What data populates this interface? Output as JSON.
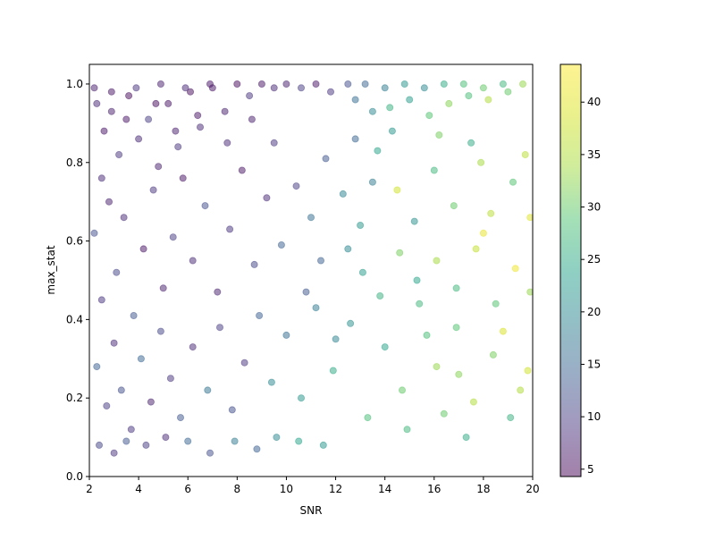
{
  "chart_data": {
    "type": "scatter",
    "xlabel": "SNR",
    "ylabel": "max_stat",
    "xlim": [
      2,
      20
    ],
    "ylim": [
      0,
      1.05
    ],
    "x_ticks": [
      2,
      4,
      6,
      8,
      10,
      12,
      14,
      16,
      18,
      20
    ],
    "y_ticks": [
      0.0,
      0.2,
      0.4,
      0.6,
      0.8,
      1.0
    ],
    "x_tick_labels": [
      "2",
      "4",
      "6",
      "8",
      "10",
      "12",
      "14",
      "16",
      "18",
      "20"
    ],
    "y_tick_labels": [
      "0.0",
      "0.2",
      "0.4",
      "0.6",
      "0.8",
      "1.0"
    ],
    "colorbar": {
      "colormap": "viridis",
      "range": [
        4.3,
        43.6
      ],
      "ticks": [
        5,
        10,
        15,
        20,
        25,
        30,
        35,
        40
      ],
      "tick_labels": [
        "5",
        "10",
        "15",
        "20",
        "25",
        "30",
        "35",
        "40"
      ]
    },
    "marker_alpha": 0.5,
    "grid": false,
    "points": [
      {
        "x": 2.3,
        "y": 0.95,
        "c": 8
      },
      {
        "x": 2.6,
        "y": 0.88,
        "c": 6
      },
      {
        "x": 2.9,
        "y": 0.93,
        "c": 7
      },
      {
        "x": 3.2,
        "y": 0.82,
        "c": 9
      },
      {
        "x": 3.6,
        "y": 0.97,
        "c": 5
      },
      {
        "x": 4.0,
        "y": 0.86,
        "c": 8
      },
      {
        "x": 4.4,
        "y": 0.91,
        "c": 10
      },
      {
        "x": 4.8,
        "y": 0.79,
        "c": 7
      },
      {
        "x": 5.2,
        "y": 0.95,
        "c": 6
      },
      {
        "x": 5.6,
        "y": 0.84,
        "c": 9
      },
      {
        "x": 6.1,
        "y": 0.98,
        "c": 5
      },
      {
        "x": 6.5,
        "y": 0.89,
        "c": 8
      },
      {
        "x": 7.0,
        "y": 0.99,
        "c": 6
      },
      {
        "x": 7.5,
        "y": 0.93,
        "c": 7
      },
      {
        "x": 8.0,
        "y": 1.0,
        "c": 5
      },
      {
        "x": 8.5,
        "y": 0.97,
        "c": 9
      },
      {
        "x": 9.0,
        "y": 1.0,
        "c": 6
      },
      {
        "x": 9.5,
        "y": 0.99,
        "c": 8
      },
      {
        "x": 10.0,
        "y": 1.0,
        "c": 7
      },
      {
        "x": 10.6,
        "y": 0.99,
        "c": 10
      },
      {
        "x": 11.2,
        "y": 1.0,
        "c": 6
      },
      {
        "x": 11.8,
        "y": 0.98,
        "c": 9
      },
      {
        "x": 12.5,
        "y": 1.0,
        "c": 12
      },
      {
        "x": 13.2,
        "y": 1.0,
        "c": 15
      },
      {
        "x": 14.0,
        "y": 0.99,
        "c": 18
      },
      {
        "x": 14.8,
        "y": 1.0,
        "c": 22
      },
      {
        "x": 15.6,
        "y": 0.99,
        "c": 20
      },
      {
        "x": 16.4,
        "y": 1.0,
        "c": 25
      },
      {
        "x": 17.2,
        "y": 1.0,
        "c": 28
      },
      {
        "x": 18.0,
        "y": 0.99,
        "c": 30
      },
      {
        "x": 18.8,
        "y": 1.0,
        "c": 27
      },
      {
        "x": 19.6,
        "y": 1.0,
        "c": 33
      },
      {
        "x": 2.2,
        "y": 0.62,
        "c": 12
      },
      {
        "x": 2.5,
        "y": 0.45,
        "c": 9
      },
      {
        "x": 2.8,
        "y": 0.7,
        "c": 7
      },
      {
        "x": 3.1,
        "y": 0.52,
        "c": 11
      },
      {
        "x": 3.4,
        "y": 0.66,
        "c": 8
      },
      {
        "x": 3.8,
        "y": 0.41,
        "c": 13
      },
      {
        "x": 4.2,
        "y": 0.58,
        "c": 6
      },
      {
        "x": 4.6,
        "y": 0.73,
        "c": 9
      },
      {
        "x": 5.0,
        "y": 0.48,
        "c": 7
      },
      {
        "x": 5.4,
        "y": 0.61,
        "c": 10
      },
      {
        "x": 5.8,
        "y": 0.76,
        "c": 6
      },
      {
        "x": 6.2,
        "y": 0.55,
        "c": 8
      },
      {
        "x": 6.7,
        "y": 0.69,
        "c": 12
      },
      {
        "x": 7.2,
        "y": 0.47,
        "c": 7
      },
      {
        "x": 7.7,
        "y": 0.63,
        "c": 9
      },
      {
        "x": 8.2,
        "y": 0.78,
        "c": 6
      },
      {
        "x": 8.7,
        "y": 0.54,
        "c": 11
      },
      {
        "x": 9.2,
        "y": 0.71,
        "c": 8
      },
      {
        "x": 9.8,
        "y": 0.59,
        "c": 14
      },
      {
        "x": 10.4,
        "y": 0.74,
        "c": 10
      },
      {
        "x": 11.0,
        "y": 0.66,
        "c": 16
      },
      {
        "x": 11.6,
        "y": 0.81,
        "c": 13
      },
      {
        "x": 12.3,
        "y": 0.72,
        "c": 19
      },
      {
        "x": 13.0,
        "y": 0.64,
        "c": 22
      },
      {
        "x": 13.7,
        "y": 0.83,
        "c": 24
      },
      {
        "x": 14.5,
        "y": 0.73,
        "c": 38
      },
      {
        "x": 15.2,
        "y": 0.65,
        "c": 21
      },
      {
        "x": 16.0,
        "y": 0.78,
        "c": 27
      },
      {
        "x": 16.8,
        "y": 0.69,
        "c": 30
      },
      {
        "x": 17.5,
        "y": 0.85,
        "c": 25
      },
      {
        "x": 18.3,
        "y": 0.67,
        "c": 36
      },
      {
        "x": 19.2,
        "y": 0.75,
        "c": 29
      },
      {
        "x": 19.9,
        "y": 0.66,
        "c": 40
      },
      {
        "x": 2.3,
        "y": 0.28,
        "c": 14
      },
      {
        "x": 2.7,
        "y": 0.18,
        "c": 10
      },
      {
        "x": 3.0,
        "y": 0.34,
        "c": 8
      },
      {
        "x": 3.3,
        "y": 0.22,
        "c": 12
      },
      {
        "x": 3.7,
        "y": 0.12,
        "c": 9
      },
      {
        "x": 4.1,
        "y": 0.3,
        "c": 15
      },
      {
        "x": 4.5,
        "y": 0.19,
        "c": 7
      },
      {
        "x": 4.9,
        "y": 0.37,
        "c": 11
      },
      {
        "x": 5.3,
        "y": 0.25,
        "c": 9
      },
      {
        "x": 5.7,
        "y": 0.15,
        "c": 13
      },
      {
        "x": 6.2,
        "y": 0.33,
        "c": 8
      },
      {
        "x": 6.8,
        "y": 0.22,
        "c": 17
      },
      {
        "x": 7.3,
        "y": 0.38,
        "c": 10
      },
      {
        "x": 7.8,
        "y": 0.17,
        "c": 12
      },
      {
        "x": 8.3,
        "y": 0.29,
        "c": 9
      },
      {
        "x": 8.9,
        "y": 0.41,
        "c": 14
      },
      {
        "x": 9.4,
        "y": 0.24,
        "c": 20
      },
      {
        "x": 10.0,
        "y": 0.36,
        "c": 16
      },
      {
        "x": 10.6,
        "y": 0.2,
        "c": 22
      },
      {
        "x": 11.2,
        "y": 0.43,
        "c": 18
      },
      {
        "x": 11.9,
        "y": 0.27,
        "c": 25
      },
      {
        "x": 12.6,
        "y": 0.39,
        "c": 21
      },
      {
        "x": 13.3,
        "y": 0.15,
        "c": 28
      },
      {
        "x": 14.0,
        "y": 0.33,
        "c": 24
      },
      {
        "x": 14.7,
        "y": 0.22,
        "c": 30
      },
      {
        "x": 15.4,
        "y": 0.44,
        "c": 27
      },
      {
        "x": 16.1,
        "y": 0.28,
        "c": 33
      },
      {
        "x": 16.9,
        "y": 0.38,
        "c": 29
      },
      {
        "x": 17.6,
        "y": 0.19,
        "c": 35
      },
      {
        "x": 18.4,
        "y": 0.31,
        "c": 31
      },
      {
        "x": 19.1,
        "y": 0.15,
        "c": 26
      },
      {
        "x": 19.8,
        "y": 0.27,
        "c": 38
      },
      {
        "x": 2.4,
        "y": 0.08,
        "c": 11
      },
      {
        "x": 3.0,
        "y": 0.06,
        "c": 9
      },
      {
        "x": 3.5,
        "y": 0.09,
        "c": 13
      },
      {
        "x": 4.3,
        "y": 0.08,
        "c": 10
      },
      {
        "x": 5.1,
        "y": 0.1,
        "c": 8
      },
      {
        "x": 6.0,
        "y": 0.09,
        "c": 15
      },
      {
        "x": 6.9,
        "y": 0.06,
        "c": 12
      },
      {
        "x": 7.9,
        "y": 0.09,
        "c": 18
      },
      {
        "x": 8.8,
        "y": 0.07,
        "c": 14
      },
      {
        "x": 9.6,
        "y": 0.1,
        "c": 20
      },
      {
        "x": 10.5,
        "y": 0.09,
        "c": 24
      },
      {
        "x": 11.5,
        "y": 0.08,
        "c": 22
      },
      {
        "x": 2.2,
        "y": 0.99,
        "c": 7
      },
      {
        "x": 2.9,
        "y": 0.98,
        "c": 6
      },
      {
        "x": 3.9,
        "y": 0.99,
        "c": 9
      },
      {
        "x": 4.9,
        "y": 1.0,
        "c": 7
      },
      {
        "x": 5.9,
        "y": 0.99,
        "c": 8
      },
      {
        "x": 6.9,
        "y": 1.0,
        "c": 6
      },
      {
        "x": 12.8,
        "y": 0.96,
        "c": 16
      },
      {
        "x": 13.5,
        "y": 0.93,
        "c": 20
      },
      {
        "x": 14.2,
        "y": 0.94,
        "c": 26
      },
      {
        "x": 15.0,
        "y": 0.96,
        "c": 23
      },
      {
        "x": 15.8,
        "y": 0.92,
        "c": 29
      },
      {
        "x": 16.6,
        "y": 0.95,
        "c": 32
      },
      {
        "x": 17.4,
        "y": 0.97,
        "c": 28
      },
      {
        "x": 18.2,
        "y": 0.96,
        "c": 35
      },
      {
        "x": 19.0,
        "y": 0.98,
        "c": 30
      },
      {
        "x": 13.1,
        "y": 0.52,
        "c": 23
      },
      {
        "x": 13.8,
        "y": 0.46,
        "c": 26
      },
      {
        "x": 14.6,
        "y": 0.57,
        "c": 31
      },
      {
        "x": 15.3,
        "y": 0.5,
        "c": 24
      },
      {
        "x": 16.1,
        "y": 0.55,
        "c": 34
      },
      {
        "x": 16.9,
        "y": 0.48,
        "c": 27
      },
      {
        "x": 17.7,
        "y": 0.58,
        "c": 37
      },
      {
        "x": 18.5,
        "y": 0.44,
        "c": 29
      },
      {
        "x": 19.3,
        "y": 0.53,
        "c": 42
      },
      {
        "x": 19.9,
        "y": 0.47,
        "c": 33
      },
      {
        "x": 12.5,
        "y": 0.58,
        "c": 20
      },
      {
        "x": 12.0,
        "y": 0.35,
        "c": 19
      },
      {
        "x": 15.7,
        "y": 0.36,
        "c": 28
      },
      {
        "x": 17.0,
        "y": 0.26,
        "c": 32
      },
      {
        "x": 18.8,
        "y": 0.37,
        "c": 39
      },
      {
        "x": 19.5,
        "y": 0.22,
        "c": 35
      },
      {
        "x": 16.4,
        "y": 0.16,
        "c": 30
      },
      {
        "x": 14.9,
        "y": 0.12,
        "c": 27
      },
      {
        "x": 17.3,
        "y": 0.1,
        "c": 25
      },
      {
        "x": 18.0,
        "y": 0.62,
        "c": 41
      },
      {
        "x": 19.7,
        "y": 0.82,
        "c": 36
      },
      {
        "x": 16.2,
        "y": 0.87,
        "c": 31
      },
      {
        "x": 17.9,
        "y": 0.8,
        "c": 34
      },
      {
        "x": 14.3,
        "y": 0.88,
        "c": 22
      },
      {
        "x": 13.5,
        "y": 0.75,
        "c": 18
      },
      {
        "x": 12.8,
        "y": 0.86,
        "c": 15
      },
      {
        "x": 11.4,
        "y": 0.55,
        "c": 14
      },
      {
        "x": 10.8,
        "y": 0.47,
        "c": 13
      },
      {
        "x": 9.5,
        "y": 0.85,
        "c": 9
      },
      {
        "x": 8.6,
        "y": 0.91,
        "c": 7
      },
      {
        "x": 7.6,
        "y": 0.85,
        "c": 8
      },
      {
        "x": 6.4,
        "y": 0.92,
        "c": 6
      },
      {
        "x": 5.5,
        "y": 0.88,
        "c": 7
      },
      {
        "x": 4.7,
        "y": 0.95,
        "c": 5
      },
      {
        "x": 3.5,
        "y": 0.91,
        "c": 6
      },
      {
        "x": 2.5,
        "y": 0.76,
        "c": 8
      }
    ]
  }
}
